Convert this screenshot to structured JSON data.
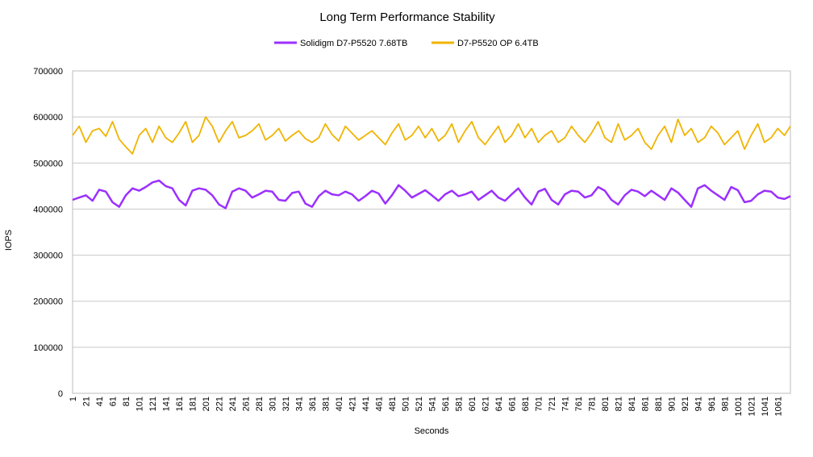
{
  "chart_data": {
    "type": "line",
    "title": "Long Term Performance Stability",
    "xlabel": "Seconds",
    "ylabel": "IOPS",
    "ylim": [
      0,
      700000
    ],
    "yticks": [
      0,
      100000,
      200000,
      300000,
      400000,
      500000,
      600000,
      700000
    ],
    "y_tick_labels": [
      "0",
      "100000",
      "200000",
      "300000",
      "400000",
      "500000",
      "600000",
      "700000"
    ],
    "x_range": [
      1,
      1080
    ],
    "x_ticks": [
      "1",
      "21",
      "41",
      "61",
      "81",
      "101",
      "121",
      "141",
      "161",
      "181",
      "201",
      "221",
      "241",
      "261",
      "281",
      "301",
      "321",
      "341",
      "361",
      "381",
      "401",
      "421",
      "441",
      "461",
      "481",
      "501",
      "521",
      "541",
      "561",
      "581",
      "601",
      "621",
      "641",
      "661",
      "681",
      "701",
      "721",
      "741",
      "761",
      "781",
      "801",
      "821",
      "841",
      "861",
      "881",
      "901",
      "921",
      "941",
      "961",
      "981",
      "1001",
      "1021",
      "1041",
      "1061"
    ],
    "grid": true,
    "legend_position": "top",
    "series": [
      {
        "name": "Solidigm D7-P5520 7.68TB",
        "color": "#9b30ff",
        "x_step": 10,
        "values": [
          420000,
          425000,
          430000,
          418000,
          442000,
          438000,
          415000,
          405000,
          430000,
          445000,
          440000,
          448000,
          458000,
          462000,
          450000,
          445000,
          420000,
          408000,
          440000,
          445000,
          442000,
          430000,
          410000,
          402000,
          438000,
          445000,
          440000,
          425000,
          432000,
          440000,
          438000,
          420000,
          418000,
          435000,
          438000,
          412000,
          405000,
          428000,
          440000,
          432000,
          430000,
          438000,
          432000,
          418000,
          428000,
          440000,
          434000,
          412000,
          430000,
          452000,
          440000,
          425000,
          433000,
          441000,
          430000,
          418000,
          432000,
          440000,
          428000,
          432000,
          438000,
          420000,
          430000,
          440000,
          425000,
          418000,
          432000,
          445000,
          425000,
          410000,
          438000,
          444000,
          420000,
          410000,
          432000,
          440000,
          438000,
          425000,
          430000,
          448000,
          440000,
          420000,
          410000,
          430000,
          442000,
          438000,
          428000,
          440000,
          430000,
          420000,
          445000,
          436000,
          420000,
          405000,
          445000,
          452000,
          440000,
          430000,
          420000,
          448000,
          441000,
          415000,
          418000,
          432000,
          440000,
          438000,
          425000,
          422000,
          428000
        ]
      },
      {
        "name": "D7-P5520 OP 6.4TB",
        "color": "#f0b400",
        "x_step": 10,
        "values": [
          560000,
          580000,
          545000,
          570000,
          575000,
          558000,
          590000,
          552000,
          535000,
          520000,
          560000,
          575000,
          545000,
          580000,
          555000,
          545000,
          565000,
          590000,
          545000,
          560000,
          600000,
          580000,
          545000,
          570000,
          590000,
          555000,
          560000,
          570000,
          585000,
          550000,
          560000,
          575000,
          548000,
          560000,
          570000,
          553000,
          545000,
          555000,
          585000,
          562000,
          548000,
          580000,
          565000,
          550000,
          560000,
          570000,
          555000,
          540000,
          565000,
          585000,
          550000,
          560000,
          580000,
          555000,
          575000,
          548000,
          560000,
          585000,
          545000,
          570000,
          590000,
          555000,
          540000,
          560000,
          580000,
          545000,
          560000,
          585000,
          555000,
          575000,
          545000,
          560000,
          570000,
          545000,
          555000,
          580000,
          560000,
          545000,
          565000,
          590000,
          555000,
          545000,
          585000,
          550000,
          560000,
          575000,
          545000,
          530000,
          560000,
          580000,
          545000,
          595000,
          560000,
          575000,
          545000,
          555000,
          580000,
          565000,
          540000,
          555000,
          570000,
          530000,
          560000,
          585000,
          545000,
          555000,
          575000,
          560000,
          580000
        ]
      }
    ]
  }
}
